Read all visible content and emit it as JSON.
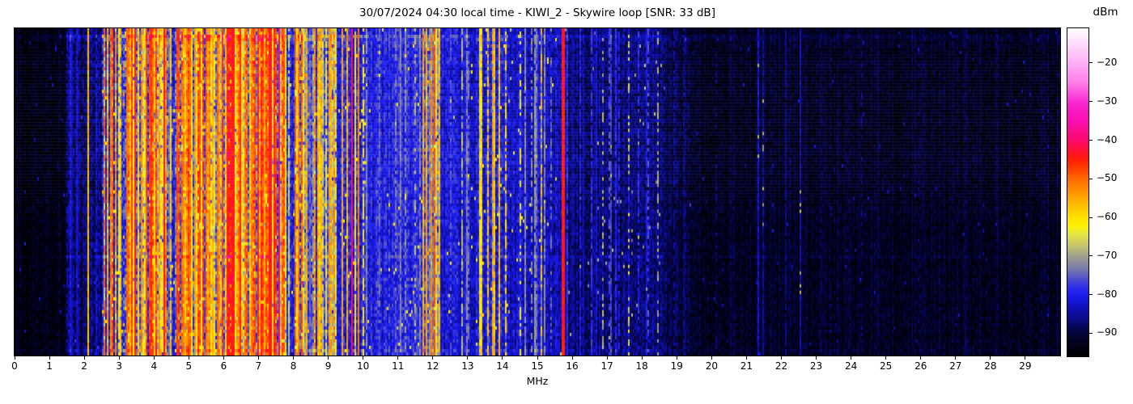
{
  "chart_data": {
    "type": "heatmap",
    "title": "30/07/2024 04:30 local time - KIWI_2 - Skywire loop [SNR: 33 dB]",
    "xlabel": "MHz",
    "x_range_mhz": [
      0,
      30
    ],
    "x_ticks": [
      0,
      1,
      2,
      3,
      4,
      5,
      6,
      7,
      8,
      9,
      10,
      11,
      12,
      13,
      14,
      15,
      16,
      17,
      18,
      19,
      20,
      21,
      22,
      23,
      24,
      25,
      26,
      27,
      28,
      29
    ],
    "y_axis": "time (unlabeled waterfall rows)",
    "colorbar": {
      "label": "dBm",
      "ticks": [
        -20,
        -30,
        -40,
        -50,
        -60,
        -70,
        -80,
        -90
      ],
      "vmin": -96,
      "vmax": -11
    },
    "colormap_stops": [
      [
        -96,
        "#000000"
      ],
      [
        -93,
        "#02021a"
      ],
      [
        -90,
        "#05053a"
      ],
      [
        -88,
        "#08085f"
      ],
      [
        -86,
        "#0c0c8a"
      ],
      [
        -83,
        "#1212bf"
      ],
      [
        -80,
        "#1c1cf0"
      ],
      [
        -78,
        "#3030e8"
      ],
      [
        -76,
        "#4d4dcf"
      ],
      [
        -73,
        "#7d7dab"
      ],
      [
        -70,
        "#a0a08f"
      ],
      [
        -67,
        "#c8c86a"
      ],
      [
        -64,
        "#eaea3e"
      ],
      [
        -62,
        "#fff200"
      ],
      [
        -59,
        "#ffd800"
      ],
      [
        -56,
        "#ffb400"
      ],
      [
        -53,
        "#ff9000"
      ],
      [
        -50,
        "#ff6a00"
      ],
      [
        -47,
        "#ff3c00"
      ],
      [
        -45,
        "#ff1e05"
      ],
      [
        -42,
        "#ff0d3f"
      ],
      [
        -40,
        "#fb0a6e"
      ],
      [
        -35,
        "#fa0fb0"
      ],
      [
        -30,
        "#fa28d2"
      ],
      [
        -25,
        "#ff80ea"
      ],
      [
        -20,
        "#ffaff5"
      ],
      [
        -15,
        "#ffdcfb"
      ],
      [
        -11,
        "#ffffff"
      ]
    ],
    "pattern": {
      "seed": 7,
      "bins": 646,
      "rows": 101,
      "bands": [
        [
          0.0,
          1.5,
          -93,
          2.5,
          0.0,
          -90,
          0.004,
          -84
        ],
        [
          1.5,
          1.95,
          -88,
          4,
          0.3,
          -81,
          0.01,
          -80
        ],
        [
          1.95,
          2.5,
          -87,
          4,
          0.25,
          -80,
          0.008,
          -80
        ],
        [
          2.5,
          3.1,
          -80,
          5,
          0.5,
          -52,
          0.02,
          -60
        ],
        [
          3.1,
          4.4,
          -77,
          6,
          0.7,
          -47,
          0.03,
          -56
        ],
        [
          4.4,
          4.6,
          -80,
          5,
          0.3,
          -56,
          0.02,
          -60
        ],
        [
          4.6,
          6.05,
          -75,
          6,
          0.8,
          -46,
          0.03,
          -54
        ],
        [
          6.05,
          7.78,
          -74,
          6,
          0.85,
          -44,
          0.03,
          -54
        ],
        [
          7.78,
          8.02,
          -80,
          5,
          0.3,
          -56,
          0.02,
          -60
        ],
        [
          8.02,
          8.35,
          -76,
          6,
          0.7,
          -48,
          0.025,
          -56
        ],
        [
          8.35,
          9.1,
          -79,
          5,
          0.5,
          -52,
          0.02,
          -58
        ],
        [
          9.1,
          9.4,
          -82,
          4,
          0.35,
          -60,
          0.012,
          -64
        ],
        [
          9.4,
          10.0,
          -80,
          5,
          0.4,
          -52,
          0.02,
          -60
        ],
        [
          10.0,
          11.7,
          -80,
          4,
          0.1,
          -72,
          0.015,
          -64
        ],
        [
          11.7,
          12.2,
          -78,
          5,
          0.5,
          -52,
          0.02,
          -58
        ],
        [
          12.2,
          13.3,
          -82,
          4,
          0.15,
          -72,
          0.012,
          -64
        ],
        [
          13.3,
          14.15,
          -81,
          5,
          0.3,
          -58,
          0.015,
          -62
        ],
        [
          14.15,
          15.55,
          -83,
          4,
          0.12,
          -70,
          0.01,
          -66
        ],
        [
          15.55,
          15.82,
          -84,
          4,
          0.08,
          -72,
          0.008,
          -68
        ],
        [
          15.82,
          16.7,
          -87,
          3.5,
          0.1,
          -78,
          0.006,
          -72
        ],
        [
          16.7,
          18.6,
          -87,
          3.5,
          0.12,
          -76,
          0.007,
          -70
        ],
        [
          18.6,
          19.5,
          -90,
          3,
          0.05,
          -84,
          0.004,
          -80
        ],
        [
          19.5,
          30.0,
          -92,
          2.5,
          0.015,
          -86,
          0.004,
          -84
        ]
      ],
      "carriers": [
        [
          1.61,
          -84,
          1,
          1
        ],
        [
          1.76,
          -82,
          1,
          1
        ],
        [
          2.07,
          -57,
          1,
          1
        ],
        [
          2.56,
          -50,
          0.7,
          1
        ],
        [
          2.65,
          -55,
          0.8,
          1
        ],
        [
          2.78,
          -48,
          0.6,
          1
        ],
        [
          2.9,
          -52,
          0.8,
          1
        ],
        [
          3.0,
          -58,
          0.8,
          1
        ],
        [
          3.2,
          -50,
          1,
          1
        ],
        [
          3.33,
          -47,
          1,
          1
        ],
        [
          3.44,
          -44,
          1,
          1
        ],
        [
          3.62,
          -52,
          0.9,
          1
        ],
        [
          3.75,
          -49,
          0.9,
          1
        ],
        [
          3.9,
          -46,
          0.95,
          1
        ],
        [
          4.05,
          -55,
          0.9,
          1
        ],
        [
          4.27,
          -44,
          1,
          1
        ],
        [
          4.48,
          -58,
          0.8,
          1
        ],
        [
          4.65,
          -48,
          1,
          1
        ],
        [
          4.85,
          -52,
          0.9,
          1
        ],
        [
          5.0,
          -50,
          0.9,
          1
        ],
        [
          5.15,
          -54,
          0.85,
          1
        ],
        [
          5.3,
          -48,
          0.9,
          1
        ],
        [
          5.5,
          -52,
          0.9,
          1
        ],
        [
          5.65,
          -55,
          0.85,
          1
        ],
        [
          5.8,
          -50,
          0.9,
          1
        ],
        [
          5.95,
          -53,
          0.9,
          1
        ],
        [
          6.07,
          -46,
          1,
          1
        ],
        [
          6.2,
          -44,
          1,
          2
        ],
        [
          6.45,
          -45,
          1,
          1
        ],
        [
          6.6,
          -50,
          0.9,
          1
        ],
        [
          6.78,
          -52,
          0.9,
          1
        ],
        [
          6.95,
          -48,
          0.9,
          1
        ],
        [
          7.1,
          -50,
          0.9,
          1
        ],
        [
          7.3,
          -44,
          1,
          2
        ],
        [
          7.42,
          -45,
          1,
          1
        ],
        [
          7.56,
          -41,
          1,
          1
        ],
        [
          7.7,
          -48,
          0.9,
          1
        ],
        [
          8.05,
          -49,
          0.9,
          1
        ],
        [
          8.15,
          -52,
          0.85,
          1
        ],
        [
          8.35,
          -55,
          0.8,
          1
        ],
        [
          8.6,
          -52,
          0.85,
          1
        ],
        [
          8.8,
          -56,
          0.8,
          1
        ],
        [
          9.0,
          -54,
          0.8,
          1
        ],
        [
          9.13,
          -52,
          0.5,
          1
        ],
        [
          9.4,
          -55,
          0.9,
          1
        ],
        [
          9.53,
          -60,
          0.8,
          1
        ],
        [
          9.68,
          -40,
          1,
          1
        ],
        [
          9.85,
          -52,
          0.9,
          1
        ],
        [
          10.0,
          -62,
          0.6,
          1
        ],
        [
          10.45,
          -75,
          0.8,
          1
        ],
        [
          10.9,
          -74,
          0.7,
          1
        ],
        [
          11.2,
          -72,
          0.7,
          1
        ],
        [
          11.45,
          -68,
          0.4,
          1
        ],
        [
          11.78,
          -55,
          0.9,
          1
        ],
        [
          11.92,
          -52,
          0.9,
          1
        ],
        [
          12.05,
          -48,
          0.9,
          1
        ],
        [
          12.16,
          -57,
          0.85,
          1
        ],
        [
          12.5,
          -76,
          0.7,
          1
        ],
        [
          12.8,
          -68,
          0.6,
          1
        ],
        [
          13.0,
          -74,
          0.6,
          1
        ],
        [
          13.35,
          -62,
          0.6,
          1
        ],
        [
          13.57,
          -58,
          0.7,
          1
        ],
        [
          13.7,
          -55,
          0.8,
          1
        ],
        [
          13.88,
          -56,
          0.7,
          1
        ],
        [
          14.05,
          -60,
          0.6,
          1
        ],
        [
          14.5,
          -63,
          0.5,
          1
        ],
        [
          14.8,
          -72,
          0.5,
          1
        ],
        [
          15.1,
          -57,
          0.5,
          1
        ],
        [
          15.35,
          -74,
          0.5,
          1
        ],
        [
          15.7,
          -44,
          1,
          2
        ],
        [
          16.2,
          -80,
          0.8,
          1
        ],
        [
          16.55,
          -78,
          0.7,
          1
        ],
        [
          16.85,
          -68,
          0.4,
          1
        ],
        [
          17.05,
          -76,
          0.6,
          1
        ],
        [
          17.3,
          -80,
          0.6,
          1
        ],
        [
          17.6,
          -66,
          0.35,
          1
        ],
        [
          17.9,
          -79,
          0.6,
          1
        ],
        [
          18.15,
          -76,
          0.5,
          1
        ],
        [
          18.45,
          -70,
          0.4,
          1
        ],
        [
          18.9,
          -85,
          0.6,
          1
        ],
        [
          19.2,
          -86,
          0.5,
          1
        ],
        [
          20.1,
          -87,
          0.3,
          1
        ],
        [
          21.3,
          -66,
          0.05,
          1
        ],
        [
          21.45,
          -70,
          0.05,
          1
        ],
        [
          22.5,
          -68,
          0.05,
          1
        ],
        [
          23.4,
          -88,
          0.3,
          1
        ],
        [
          24.3,
          -87,
          0.3,
          1
        ],
        [
          25.9,
          -88,
          0.25,
          1
        ],
        [
          27.5,
          -89,
          0.2,
          1
        ]
      ],
      "bright_rows": [
        [
          2,
          4
        ],
        [
          3,
          2
        ],
        [
          10,
          2
        ],
        [
          70,
          3
        ],
        [
          99,
          3.5
        ]
      ]
    }
  }
}
